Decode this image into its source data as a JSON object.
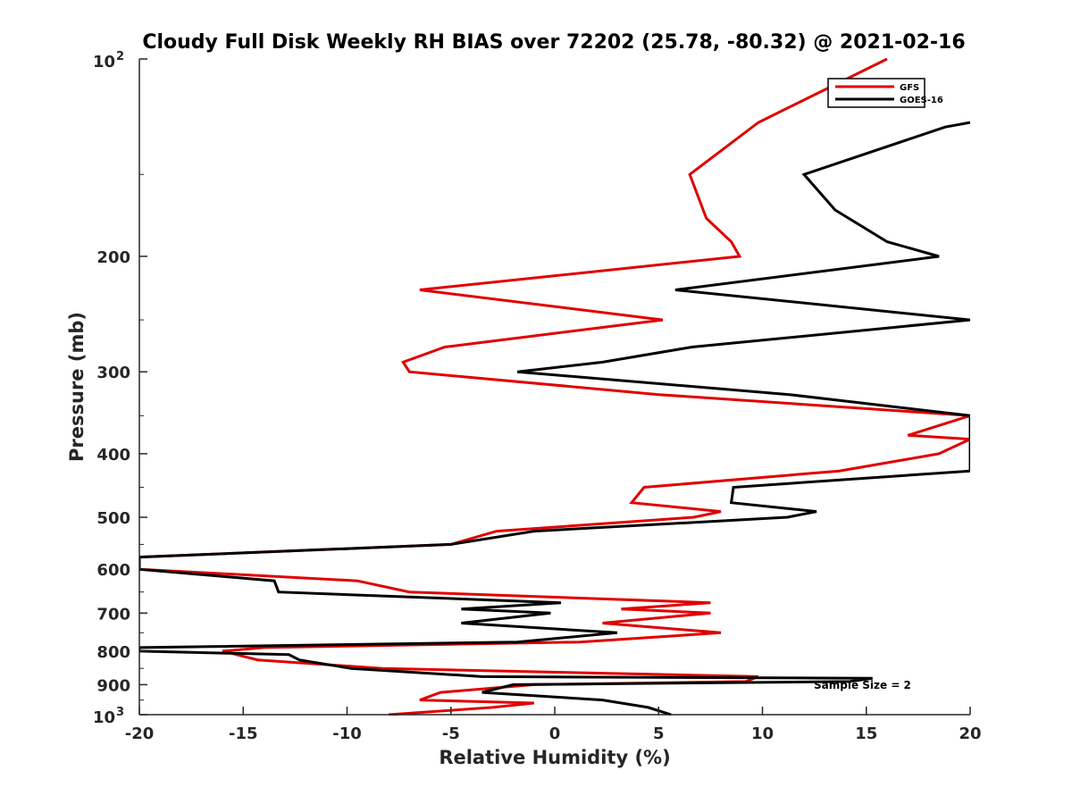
{
  "chart_data": {
    "type": "line",
    "title": "Cloudy Full Disk Weekly RH BIAS over 72202 (25.78, -80.32) @ 2021-02-16",
    "xlabel": "Relative Humidity (%)",
    "ylabel": "Pressure (mb)",
    "xlim": [
      -20,
      20
    ],
    "ylim": [
      100,
      1000
    ],
    "y_scale": "log",
    "y_reversed": true,
    "grid": false,
    "legend_position": "top-right",
    "annotation": "Sample Size = 2",
    "x_ticks": [
      "-20",
      "-15",
      "-10",
      "-5",
      "0",
      "5",
      "10",
      "15",
      "20"
    ],
    "y_ticks": [
      {
        "value": 100,
        "base": "10",
        "exp": "2"
      },
      {
        "value": 200,
        "label": "200"
      },
      {
        "value": 300,
        "label": "300"
      },
      {
        "value": 400,
        "label": "400"
      },
      {
        "value": 500,
        "label": "500"
      },
      {
        "value": 600,
        "label": "600"
      },
      {
        "value": 700,
        "label": "700"
      },
      {
        "value": 800,
        "label": "800"
      },
      {
        "value": 900,
        "label": "900"
      },
      {
        "value": 1000,
        "base": "10",
        "exp": "3"
      }
    ],
    "series": [
      {
        "name": "GFS",
        "color": "#e00000",
        "points": [
          [
            16.0,
            100
          ],
          [
            9.8,
            125
          ],
          [
            6.5,
            150
          ],
          [
            7.3,
            175
          ],
          [
            8.5,
            190
          ],
          [
            8.9,
            200
          ],
          [
            -6.5,
            225
          ],
          [
            5.2,
            250
          ],
          [
            -5.3,
            275
          ],
          [
            -7.3,
            290
          ],
          [
            -7.0,
            300
          ],
          [
            5.0,
            325
          ],
          [
            20.0,
            350
          ],
          [
            17.0,
            375
          ],
          [
            20.0,
            380
          ],
          [
            18.5,
            400
          ],
          [
            13.7,
            425
          ],
          [
            4.3,
            450
          ],
          [
            3.7,
            475
          ],
          [
            8.0,
            490
          ],
          [
            6.7,
            500
          ],
          [
            -2.8,
            525
          ],
          [
            -5.0,
            550
          ],
          [
            -20.0,
            575
          ],
          [
            -20.0,
            600
          ],
          [
            -9.5,
            625
          ],
          [
            -7.0,
            650
          ],
          [
            7.5,
            675
          ],
          [
            3.2,
            690
          ],
          [
            7.5,
            700
          ],
          [
            2.3,
            725
          ],
          [
            8.0,
            750
          ],
          [
            1.2,
            775
          ],
          [
            -14.0,
            790
          ],
          [
            -16.0,
            800
          ],
          [
            -14.3,
            825
          ],
          [
            -8.3,
            850
          ],
          [
            9.8,
            875
          ],
          [
            9.2,
            890
          ],
          [
            -1.0,
            900
          ],
          [
            -5.5,
            925
          ],
          [
            -6.5,
            950
          ],
          [
            -1.0,
            960
          ],
          [
            -3.0,
            975
          ],
          [
            -8.0,
            1000
          ]
        ]
      },
      {
        "name": "GOES-16",
        "color": "#000000",
        "points": [
          [
            20.0,
            125
          ],
          [
            18.8,
            127
          ],
          [
            12.0,
            150
          ],
          [
            13.5,
            170
          ],
          [
            16.0,
            190
          ],
          [
            18.5,
            200
          ],
          [
            5.8,
            225
          ],
          [
            20.0,
            250
          ],
          [
            6.6,
            275
          ],
          [
            2.3,
            290
          ],
          [
            -1.8,
            300
          ],
          [
            11.3,
            325
          ],
          [
            20.0,
            350
          ],
          [
            20.0,
            400
          ],
          [
            20.0,
            425
          ],
          [
            8.6,
            450
          ],
          [
            8.5,
            475
          ],
          [
            12.6,
            490
          ],
          [
            11.2,
            500
          ],
          [
            -1.0,
            525
          ],
          [
            -5.0,
            550
          ],
          [
            -20.0,
            575
          ],
          [
            -20.0,
            600
          ],
          [
            -13.5,
            625
          ],
          [
            -13.3,
            650
          ],
          [
            0.3,
            675
          ],
          [
            -4.5,
            690
          ],
          [
            -0.2,
            700
          ],
          [
            -4.5,
            725
          ],
          [
            3.0,
            750
          ],
          [
            -1.8,
            775
          ],
          [
            -20.0,
            790
          ],
          [
            -20.0,
            800
          ],
          [
            -12.8,
            810
          ],
          [
            -12.3,
            825
          ],
          [
            -9.8,
            850
          ],
          [
            -3.5,
            875
          ],
          [
            15.3,
            880
          ],
          [
            14.2,
            890
          ],
          [
            -2.0,
            900
          ],
          [
            -3.5,
            925
          ],
          [
            2.3,
            950
          ],
          [
            4.5,
            975
          ],
          [
            5.6,
            1000
          ]
        ]
      }
    ]
  }
}
